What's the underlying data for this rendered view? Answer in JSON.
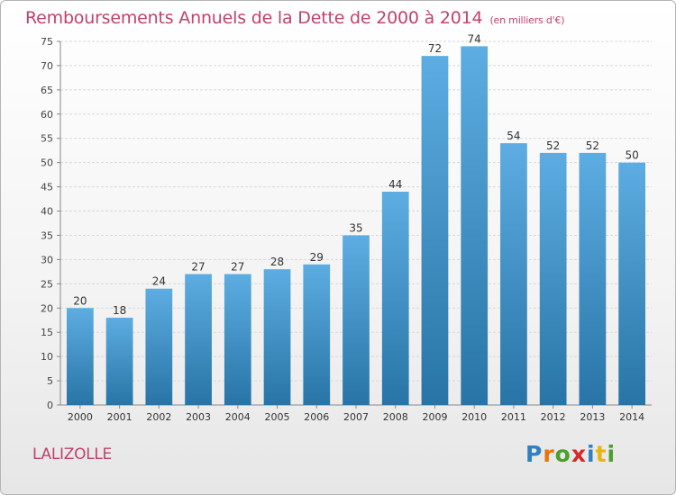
{
  "title": "Remboursements Annuels de la Dette de 2000 à 2014",
  "unit_note": "(en milliers d'€)",
  "commune": "LALIZOLLE",
  "logo": "Proxiti",
  "colors": {
    "title": "#c0426a",
    "bar_top": "#5dade2",
    "bar_bottom": "#2874a6",
    "grid": "#d8d8d8"
  },
  "chart_data": {
    "type": "bar",
    "title": "Remboursements Annuels de la Dette de 2000 à 2014",
    "xlabel": "",
    "ylabel": "",
    "categories": [
      "2000",
      "2001",
      "2002",
      "2003",
      "2004",
      "2005",
      "2006",
      "2007",
      "2008",
      "2009",
      "2010",
      "2011",
      "2012",
      "2013",
      "2014"
    ],
    "values": [
      20,
      18,
      24,
      27,
      27,
      28,
      29,
      35,
      44,
      72,
      74,
      54,
      52,
      52,
      50
    ],
    "ylim": [
      0,
      75
    ],
    "yticks": [
      0,
      5,
      10,
      15,
      20,
      25,
      30,
      35,
      40,
      45,
      50,
      55,
      60,
      65,
      70,
      75
    ],
    "grid": true,
    "data_labels": true
  }
}
